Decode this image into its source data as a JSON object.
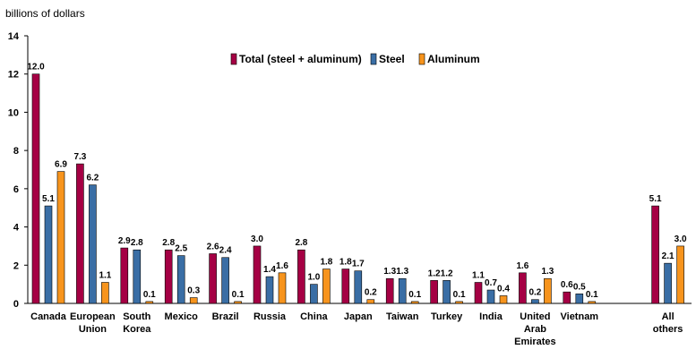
{
  "chart_data": {
    "type": "bar",
    "ylabel": "billions of dollars",
    "ylim": [
      0,
      14
    ],
    "yticks": [
      0,
      2,
      4,
      6,
      8,
      10,
      12,
      14
    ],
    "grid": false,
    "legend_position": "top-center",
    "categories": [
      [
        "Canada"
      ],
      [
        "European",
        "Union"
      ],
      [
        "South",
        "Korea"
      ],
      [
        "Mexico"
      ],
      [
        "Brazil"
      ],
      [
        "Russia"
      ],
      [
        "China"
      ],
      [
        "Japan"
      ],
      [
        "Taiwan"
      ],
      [
        "Turkey"
      ],
      [
        "India"
      ],
      [
        "United",
        "Arab",
        "Emirates"
      ],
      [
        "Vietnam"
      ],
      [],
      [
        "All",
        "others"
      ]
    ],
    "series": [
      {
        "name": "Total (steel + aluminum)",
        "color": "#A50044",
        "values": [
          12.0,
          7.3,
          2.9,
          2.8,
          2.6,
          3.0,
          2.8,
          1.8,
          1.3,
          1.2,
          1.1,
          1.6,
          0.6,
          null,
          5.1
        ]
      },
      {
        "name": "Steel",
        "color": "#3A6EA5",
        "values": [
          5.1,
          6.2,
          2.8,
          2.5,
          2.4,
          1.4,
          1.0,
          1.7,
          1.3,
          1.2,
          0.7,
          0.2,
          0.5,
          null,
          2.1
        ]
      },
      {
        "name": "Aluminum",
        "color": "#F7941D",
        "values": [
          6.9,
          1.1,
          0.1,
          0.3,
          0.1,
          1.6,
          1.8,
          0.2,
          0.1,
          0.1,
          0.4,
          1.3,
          0.1,
          null,
          3.0
        ]
      }
    ]
  }
}
